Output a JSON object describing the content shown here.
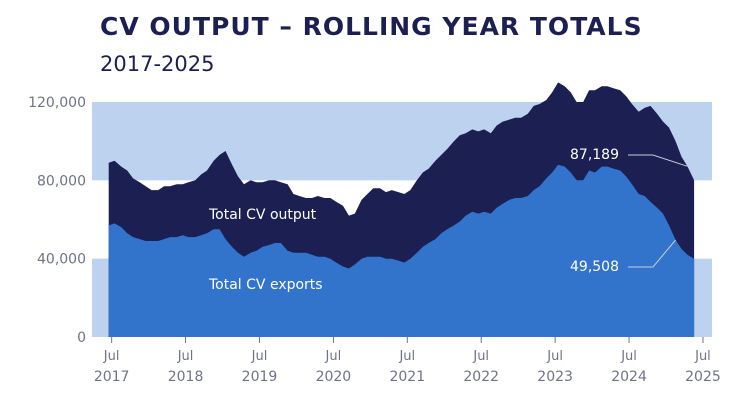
{
  "title": "CV OUTPUT – ROLLING YEAR TOTALS",
  "subtitle": "2017-2025",
  "colors": {
    "output_fill": "#1c1f52",
    "exports_fill": "#3274cc",
    "band": "#bcd2ef",
    "text": "#1c1f52",
    "axis_text": "#6f7389"
  },
  "chart_data": {
    "type": "area",
    "title": "CV OUTPUT – ROLLING YEAR TOTALS",
    "subtitle": "2017-2025",
    "xlabel": "",
    "ylabel": "",
    "ylim": [
      0,
      120000
    ],
    "yticks": [
      0,
      40000,
      80000,
      120000
    ],
    "ytick_labels": [
      "0",
      "40,000",
      "80,000",
      "120,000"
    ],
    "xlim": [
      2017.45,
      2025.5
    ],
    "xticks": [
      {
        "top": "Jul",
        "bottom": "2017"
      },
      {
        "top": "Jul",
        "bottom": "2018"
      },
      {
        "top": "Jul",
        "bottom": "2019"
      },
      {
        "top": "Jul",
        "bottom": "2020"
      },
      {
        "top": "Jul",
        "bottom": "2021"
      },
      {
        "top": "Jul",
        "bottom": "2022"
      },
      {
        "top": "Jul",
        "bottom": "2023"
      },
      {
        "top": "Jul",
        "bottom": "2024"
      },
      {
        "top": "Jul",
        "bottom": "2025"
      }
    ],
    "xtick_values": [
      2017.54,
      2018.54,
      2019.54,
      2020.54,
      2021.54,
      2022.54,
      2023.54,
      2024.54,
      2025.54
    ],
    "background_bands": [
      [
        0,
        40000
      ],
      [
        80000,
        120000
      ]
    ],
    "series": [
      {
        "name": "Total CV output",
        "label": "Total CV output",
        "color": "#1c1f52",
        "x": [
          2017.5,
          2017.58,
          2017.67,
          2017.75,
          2017.83,
          2017.92,
          2018.0,
          2018.08,
          2018.17,
          2018.25,
          2018.33,
          2018.42,
          2018.5,
          2018.58,
          2018.67,
          2018.75,
          2018.83,
          2018.92,
          2019.0,
          2019.08,
          2019.17,
          2019.25,
          2019.33,
          2019.42,
          2019.5,
          2019.58,
          2019.67,
          2019.75,
          2019.83,
          2019.92,
          2020.0,
          2020.08,
          2020.17,
          2020.25,
          2020.33,
          2020.42,
          2020.5,
          2020.58,
          2020.67,
          2020.75,
          2020.83,
          2020.92,
          2021.0,
          2021.08,
          2021.17,
          2021.25,
          2021.33,
          2021.42,
          2021.5,
          2021.58,
          2021.67,
          2021.75,
          2021.83,
          2021.92,
          2022.0,
          2022.08,
          2022.17,
          2022.25,
          2022.33,
          2022.42,
          2022.5,
          2022.58,
          2022.67,
          2022.75,
          2022.83,
          2022.92,
          2023.0,
          2023.08,
          2023.17,
          2023.25,
          2023.33,
          2023.42,
          2023.5,
          2023.58,
          2023.67,
          2023.75,
          2023.83,
          2023.92,
          2024.0,
          2024.08,
          2024.17,
          2024.25,
          2024.33,
          2024.42,
          2024.5,
          2024.58,
          2024.67,
          2024.75,
          2024.83,
          2024.92,
          2025.0,
          2025.08,
          2025.17,
          2025.25,
          2025.33,
          2025.42
        ],
        "values": [
          89000,
          90000,
          87000,
          85000,
          81000,
          79000,
          77000,
          75000,
          75000,
          77000,
          77000,
          78000,
          78000,
          79000,
          80000,
          83000,
          85000,
          90000,
          93000,
          95000,
          88000,
          82000,
          78000,
          80000,
          79000,
          79000,
          80000,
          80000,
          79000,
          78000,
          73000,
          72000,
          71000,
          71000,
          72000,
          71000,
          71000,
          69000,
          67000,
          62000,
          63000,
          70000,
          73000,
          76000,
          76000,
          74000,
          75000,
          74000,
          73000,
          75000,
          80000,
          84000,
          86000,
          90000,
          93000,
          96000,
          100000,
          103000,
          104000,
          106000,
          105000,
          106000,
          104000,
          108000,
          110000,
          111000,
          112000,
          112000,
          114000,
          118000,
          119000,
          121000,
          125000,
          130000,
          128000,
          125000,
          120000,
          120000,
          126000,
          126000,
          128000,
          128000,
          127000,
          126000,
          123000,
          119000,
          115000,
          117000,
          118000,
          114000,
          110000,
          107000,
          100000,
          92000,
          87189,
          80000
        ]
      },
      {
        "name": "Total CV exports",
        "label": "Total CV exports",
        "color": "#3274cc",
        "x": [
          2017.5,
          2017.58,
          2017.67,
          2017.75,
          2017.83,
          2017.92,
          2018.0,
          2018.08,
          2018.17,
          2018.25,
          2018.33,
          2018.42,
          2018.5,
          2018.58,
          2018.67,
          2018.75,
          2018.83,
          2018.92,
          2019.0,
          2019.08,
          2019.17,
          2019.25,
          2019.33,
          2019.42,
          2019.5,
          2019.58,
          2019.67,
          2019.75,
          2019.83,
          2019.92,
          2020.0,
          2020.08,
          2020.17,
          2020.25,
          2020.33,
          2020.42,
          2020.5,
          2020.58,
          2020.67,
          2020.75,
          2020.83,
          2020.92,
          2021.0,
          2021.08,
          2021.17,
          2021.25,
          2021.33,
          2021.42,
          2021.5,
          2021.58,
          2021.67,
          2021.75,
          2021.83,
          2021.92,
          2022.0,
          2022.08,
          2022.17,
          2022.25,
          2022.33,
          2022.42,
          2022.5,
          2022.58,
          2022.67,
          2022.75,
          2022.83,
          2022.92,
          2023.0,
          2023.08,
          2023.17,
          2023.25,
          2023.33,
          2023.42,
          2023.5,
          2023.58,
          2023.67,
          2023.75,
          2023.83,
          2023.92,
          2024.0,
          2024.08,
          2024.17,
          2024.25,
          2024.33,
          2024.42,
          2024.5,
          2024.58,
          2024.67,
          2024.75,
          2024.83,
          2024.92,
          2025.0,
          2025.08,
          2025.17,
          2025.25,
          2025.33,
          2025.42
        ],
        "values": [
          57000,
          58000,
          56000,
          53000,
          51000,
          50000,
          49000,
          49000,
          49000,
          50000,
          51000,
          51000,
          52000,
          51000,
          51000,
          52000,
          53000,
          55000,
          55000,
          50000,
          46000,
          43000,
          41000,
          43000,
          44000,
          46000,
          47000,
          48000,
          48000,
          44000,
          43000,
          43000,
          43000,
          42000,
          41000,
          41000,
          40000,
          38000,
          36000,
          35000,
          37000,
          40000,
          41000,
          41000,
          41000,
          40000,
          40000,
          39000,
          38000,
          40000,
          43000,
          46000,
          48000,
          50000,
          53000,
          55000,
          57000,
          59000,
          62000,
          64000,
          63000,
          64000,
          63000,
          66000,
          68000,
          70000,
          71000,
          71000,
          72000,
          75000,
          77000,
          81000,
          84000,
          88000,
          87000,
          84000,
          80000,
          80000,
          85000,
          84000,
          87000,
          87000,
          86000,
          85000,
          82000,
          78000,
          73000,
          72000,
          69000,
          66000,
          63000,
          57000,
          49508,
          45000,
          42000,
          40000
        ]
      }
    ],
    "annotations": [
      {
        "text": "87,189",
        "series": "Total CV output",
        "value": 87189
      },
      {
        "text": "49,508",
        "series": "Total CV exports",
        "value": 49508
      }
    ]
  }
}
